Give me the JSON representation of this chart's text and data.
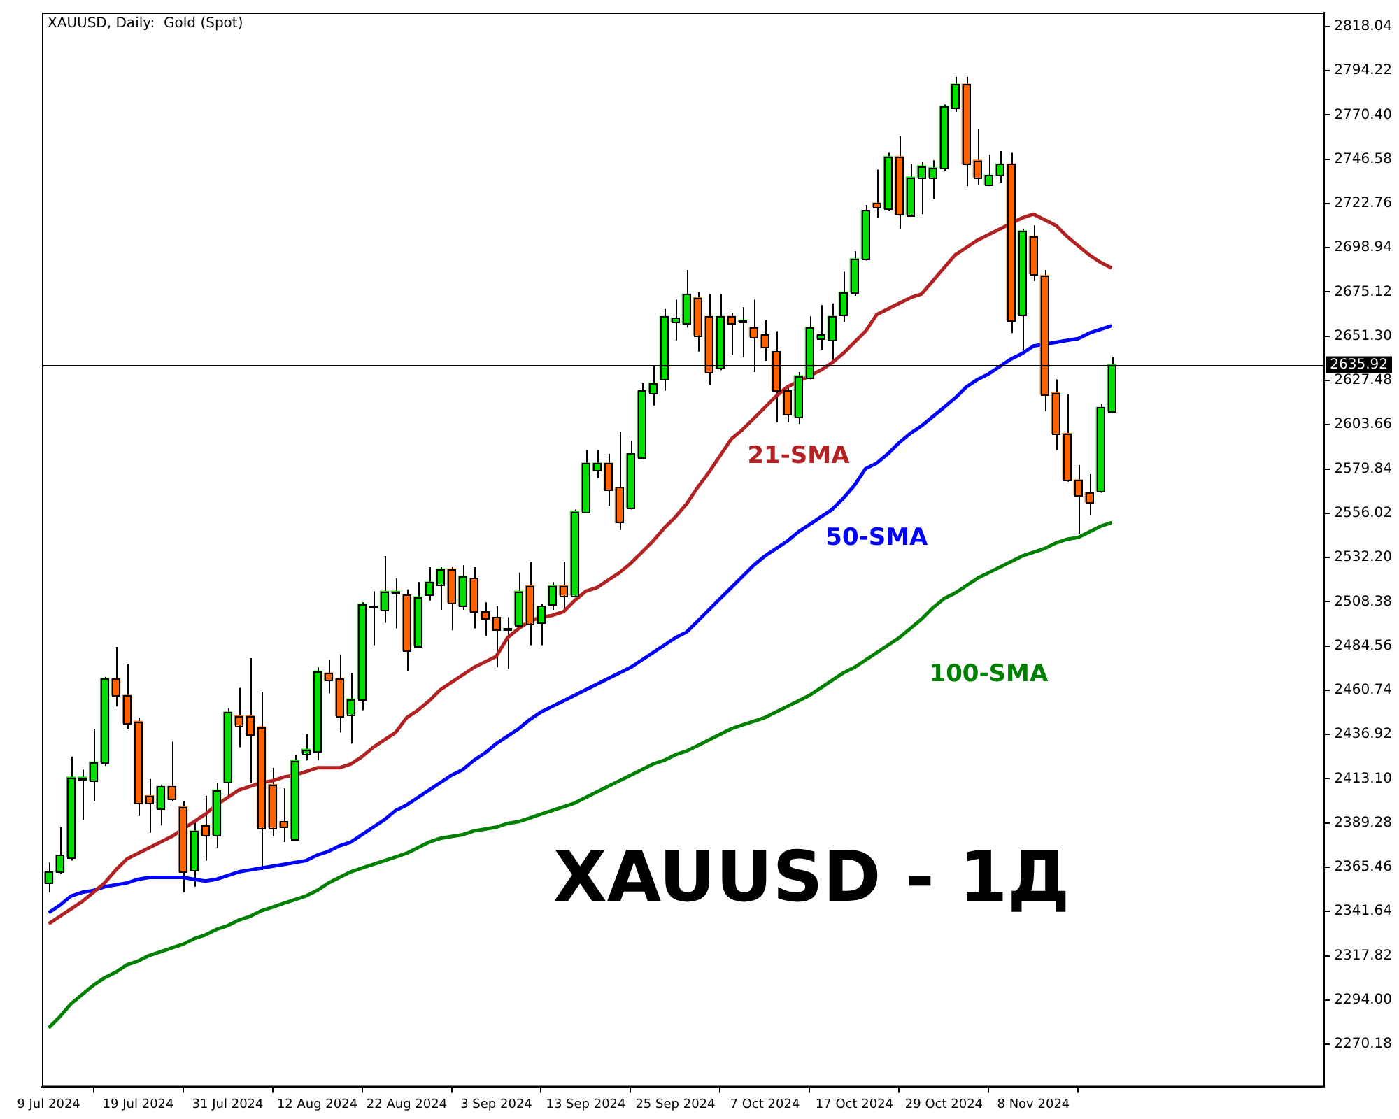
{
  "chart_data": {
    "type": "candlestick",
    "title": "XAUUSD, Daily:  Gold (Spot)",
    "categories": [
      "9 Jul 2024",
      null,
      null,
      null,
      null,
      null,
      null,
      null,
      "19 Jul 2024",
      null,
      null,
      null,
      null,
      null,
      null,
      null,
      "31 Jul 2024",
      null,
      null,
      null,
      null,
      null,
      null,
      null,
      "12 Aug 2024",
      null,
      null,
      null,
      null,
      null,
      null,
      null,
      "22 Aug 2024",
      null,
      null,
      null,
      null,
      null,
      null,
      null,
      "3 Sep 2024",
      null,
      null,
      null,
      null,
      null,
      null,
      null,
      "13 Sep 2024",
      null,
      null,
      null,
      null,
      null,
      null,
      null,
      "25 Sep 2024",
      null,
      null,
      null,
      null,
      null,
      null,
      null,
      "7 Oct 2024",
      null,
      null,
      null,
      null,
      null,
      null,
      null,
      "17 Oct 2024",
      null,
      null,
      null,
      null,
      null,
      null,
      null,
      "29 Oct 2024",
      null,
      null,
      null,
      null,
      null,
      null,
      null,
      "8 Nov 2024",
      null,
      null,
      null,
      null,
      null,
      null,
      null
    ],
    "ohlc": [
      [
        2357,
        2368,
        2352,
        2363
      ],
      [
        2363,
        2387,
        2362,
        2372
      ],
      [
        2371,
        2425,
        2369,
        2414
      ],
      [
        2413,
        2418,
        2391,
        2414
      ],
      [
        2412,
        2440,
        2401,
        2422
      ],
      [
        2422,
        2468,
        2420,
        2467
      ],
      [
        2467,
        2484,
        2452,
        2458
      ],
      [
        2458,
        2475,
        2440,
        2443
      ],
      [
        2444,
        2446,
        2393,
        2400
      ],
      [
        2404,
        2413,
        2384,
        2400
      ],
      [
        2397,
        2410,
        2388,
        2409
      ],
      [
        2409,
        2433,
        2401,
        2402
      ],
      [
        2398,
        2401,
        2352,
        2363
      ],
      [
        2364,
        2391,
        2355,
        2385
      ],
      [
        2388,
        2404,
        2369,
        2383
      ],
      [
        2383,
        2411,
        2376,
        2407
      ],
      [
        2411,
        2451,
        2404,
        2449
      ],
      [
        2447,
        2462,
        2430,
        2442
      ],
      [
        2447,
        2478,
        2411,
        2437
      ],
      [
        2441,
        2460,
        2364,
        2387
      ],
      [
        2410,
        2419,
        2382,
        2387
      ],
      [
        2390,
        2408,
        2379,
        2387
      ],
      [
        2381,
        2426,
        2380,
        2423
      ],
      [
        2427,
        2437,
        2423,
        2429
      ],
      [
        2428,
        2473,
        2423,
        2471
      ],
      [
        2470,
        2477,
        2459,
        2466
      ],
      [
        2467,
        2480,
        2438,
        2447
      ],
      [
        2448,
        2470,
        2432,
        2456
      ],
      [
        2456,
        2508,
        2450,
        2507
      ],
      [
        2505,
        2514,
        2485,
        2506
      ],
      [
        2504,
        2533,
        2497,
        2514
      ],
      [
        2513,
        2521,
        2494,
        2514
      ],
      [
        2512,
        2515,
        2471,
        2482
      ],
      [
        2485,
        2519,
        2484,
        2511
      ],
      [
        2512,
        2527,
        2509,
        2519
      ],
      [
        2518,
        2527,
        2504,
        2526
      ],
      [
        2526,
        2527,
        2493,
        2508
      ],
      [
        2506,
        2528,
        2504,
        2522
      ],
      [
        2521,
        2527,
        2494,
        2503
      ],
      [
        2503,
        2508,
        2490,
        2499
      ],
      [
        2500,
        2506,
        2473,
        2493
      ],
      [
        2493,
        2500,
        2472,
        2494
      ],
      [
        2496,
        2524,
        2495,
        2514
      ],
      [
        2517,
        2530,
        2485,
        2497
      ],
      [
        2497,
        2507,
        2485,
        2506
      ],
      [
        2507,
        2519,
        2504,
        2517
      ],
      [
        2517,
        2530,
        2504,
        2512
      ],
      [
        2512,
        2558,
        2511,
        2557
      ],
      [
        2557,
        2590,
        2556,
        2583
      ],
      [
        2579,
        2590,
        2575,
        2583
      ],
      [
        2583,
        2588,
        2560,
        2569
      ],
      [
        2570,
        2600,
        2547,
        2551
      ],
      [
        2559,
        2595,
        2558,
        2588
      ],
      [
        2586,
        2626,
        2585,
        2622
      ],
      [
        2621,
        2635,
        2614,
        2626
      ],
      [
        2628,
        2666,
        2622,
        2662
      ],
      [
        2659,
        2671,
        2649,
        2661
      ],
      [
        2658,
        2687,
        2656,
        2674
      ],
      [
        2672,
        2675,
        2643,
        2652
      ],
      [
        2662,
        2674,
        2625,
        2632
      ],
      [
        2634,
        2674,
        2633,
        2662
      ],
      [
        2662,
        2664,
        2641,
        2658
      ],
      [
        2659,
        2667,
        2640,
        2660
      ],
      [
        2656,
        2671,
        2632,
        2651
      ],
      [
        2652,
        2660,
        2638,
        2645
      ],
      [
        2643,
        2654,
        2605,
        2622
      ],
      [
        2622,
        2625,
        2605,
        2609
      ],
      [
        2608,
        2632,
        2604,
        2630
      ],
      [
        2629,
        2662,
        2628,
        2656
      ],
      [
        2650,
        2668,
        2644,
        2652
      ],
      [
        2649,
        2669,
        2638,
        2662
      ],
      [
        2663,
        2686,
        2659,
        2675
      ],
      [
        2675,
        2697,
        2673,
        2693
      ],
      [
        2693,
        2722,
        2692,
        2719
      ],
      [
        2723,
        2741,
        2715,
        2721
      ],
      [
        2720,
        2750,
        2719,
        2748
      ],
      [
        2748,
        2759,
        2709,
        2717
      ],
      [
        2717,
        2744,
        2716,
        2737
      ],
      [
        2737,
        2745,
        2717,
        2743
      ],
      [
        2737,
        2746,
        2725,
        2742
      ],
      [
        2742,
        2776,
        2740,
        2775
      ],
      [
        2774,
        2791,
        2772,
        2787
      ],
      [
        2787,
        2791,
        2732,
        2744
      ],
      [
        2746,
        2763,
        2733,
        2737
      ],
      [
        2733,
        2749,
        2732,
        2738
      ],
      [
        2738,
        2751,
        2734,
        2744
      ],
      [
        2744,
        2750,
        2653,
        2660
      ],
      [
        2663,
        2709,
        2644,
        2708
      ],
      [
        2705,
        2711,
        2681,
        2685
      ],
      [
        2684,
        2687,
        2611,
        2620
      ],
      [
        2621,
        2628,
        2590,
        2599
      ],
      [
        2599,
        2620,
        2573,
        2574
      ],
      [
        2574,
        2582,
        2545,
        2566
      ],
      [
        2567,
        2577,
        2555,
        2562
      ],
      [
        2568,
        2615,
        2567,
        2613
      ],
      [
        2611,
        2640,
        2610,
        2636
      ]
    ],
    "colors": [
      "#00e000",
      "#00e000",
      "#00e000",
      "#00e000",
      "#00e000",
      "#00e000",
      "#ff6000",
      "#ff6000",
      "#ff6000",
      "#ff6000",
      "#00e000",
      "#ff6000",
      "#ff6000",
      "#00e000",
      "#ff6000",
      "#00e000",
      "#00e000",
      "#ff6000",
      "#ff6000",
      "#ff6000",
      "#ff6000",
      "#ff6000",
      "#00e000",
      "#00e000",
      "#00e000",
      "#ff6000",
      "#ff6000",
      "#00e000",
      "#00e000",
      "#00e000",
      "#00e000",
      "#00e000",
      "#ff6000",
      "#00e000",
      "#00e000",
      "#00e000",
      "#ff6000",
      "#00e000",
      "#ff6000",
      "#ff6000",
      "#ff6000",
      "#00e000",
      "#00e000",
      "#ff6000",
      "#00e000",
      "#00e000",
      "#ff6000",
      "#00e000",
      "#00e000",
      "#00e000",
      "#ff6000",
      "#ff6000",
      "#00e000",
      "#00e000",
      "#00e000",
      "#00e000",
      "#00e000",
      "#00e000",
      "#ff6000",
      "#ff6000",
      "#00e000",
      "#ff6000",
      "#00e000",
      "#ff6000",
      "#ff6000",
      "#ff6000",
      "#ff6000",
      "#00e000",
      "#00e000",
      "#00e000",
      "#00e000",
      "#00e000",
      "#00e000",
      "#00e000",
      "#ff6000",
      "#00e000",
      "#ff6000",
      "#00e000",
      "#00e000",
      "#00e000",
      "#00e000",
      "#00e000",
      "#ff6000",
      "#ff6000",
      "#00e000",
      "#00e000",
      "#ff6000",
      "#00e000",
      "#ff6000",
      "#ff6000",
      "#ff6000",
      "#ff6000",
      "#ff6000",
      "#ff6000",
      "#00e000",
      "#00e000"
    ],
    "series": [
      {
        "type": "line",
        "name": "21-SMA",
        "color": "#b22222",
        "values": [
          2335,
          2339,
          2343,
          2347,
          2352,
          2357,
          2364,
          2370,
          2373,
          2376,
          2379,
          2382,
          2386,
          2390,
          2394,
          2399,
          2403,
          2407,
          2409,
          2411,
          2412,
          2414,
          2415,
          2417,
          2419,
          2419,
          2419,
          2421,
          2425,
          2430,
          2434,
          2438,
          2446,
          2450,
          2455,
          2461,
          2465,
          2469,
          2473,
          2476,
          2479,
          2489,
          2494,
          2498,
          2500,
          2501,
          2503,
          2509,
          2514,
          2516,
          2520,
          2524,
          2529,
          2535,
          2541,
          2548,
          2554,
          2561,
          2570,
          2578,
          2587,
          2596,
          2601,
          2607,
          2613,
          2619,
          2624,
          2627,
          2630,
          2633,
          2637,
          2642,
          2648,
          2654,
          2663,
          2666,
          2669,
          2672,
          2674,
          2681,
          2688,
          2695,
          2699,
          2703,
          2706,
          2709,
          2712,
          2715,
          2717,
          2714,
          2711,
          2705,
          2700,
          2695,
          2691,
          2688
        ]
      },
      {
        "type": "line",
        "name": "50-SMA",
        "color": "#0000ff",
        "values": [
          2341,
          2345,
          2350,
          2352,
          2353,
          2355,
          2356,
          2357,
          2359,
          2360,
          2360,
          2360,
          2360,
          2359,
          2358,
          2359,
          2361,
          2363,
          2364,
          2365,
          2366,
          2367,
          2368,
          2369,
          2372,
          2374,
          2377,
          2379,
          2383,
          2387,
          2391,
          2396,
          2399,
          2403,
          2407,
          2411,
          2415,
          2418,
          2423,
          2427,
          2432,
          2436,
          2440,
          2445,
          2449,
          2452,
          2455,
          2458,
          2461,
          2464,
          2467,
          2470,
          2473,
          2477,
          2481,
          2485,
          2489,
          2492,
          2498,
          2504,
          2510,
          2516,
          2522,
          2528,
          2533,
          2537,
          2541,
          2546,
          2550,
          2554,
          2558,
          2564,
          2571,
          2580,
          2583,
          2588,
          2594,
          2599,
          2603,
          2608,
          2613,
          2618,
          2624,
          2628,
          2631,
          2635,
          2639,
          2642,
          2646,
          2647,
          2648,
          2649,
          2650,
          2653,
          2655,
          2657
        ]
      },
      {
        "type": "line",
        "name": "100-SMA",
        "color": "#008000",
        "values": [
          2279,
          2285,
          2292,
          2297,
          2302,
          2306,
          2309,
          2313,
          2315,
          2318,
          2320,
          2322,
          2324,
          2327,
          2329,
          2332,
          2334,
          2337,
          2339,
          2342,
          2344,
          2346,
          2348,
          2350,
          2353,
          2357,
          2360,
          2363,
          2365,
          2367,
          2369,
          2371,
          2373,
          2376,
          2379,
          2381,
          2382,
          2383,
          2385,
          2386,
          2387,
          2389,
          2390,
          2392,
          2394,
          2396,
          2398,
          2400,
          2403,
          2406,
          2409,
          2412,
          2415,
          2418,
          2421,
          2423,
          2426,
          2428,
          2431,
          2434,
          2437,
          2440,
          2442,
          2444,
          2446,
          2449,
          2452,
          2455,
          2458,
          2462,
          2466,
          2470,
          2473,
          2477,
          2481,
          2485,
          2489,
          2494,
          2499,
          2505,
          2510,
          2513,
          2517,
          2521,
          2524,
          2527,
          2530,
          2533,
          2535,
          2537,
          2540,
          2542,
          2543,
          2546,
          2549,
          2551
        ]
      }
    ],
    "ylim": [
      2247.1,
      2825.5
    ],
    "yticks": [
      2270.18,
      {
        "value": 2294,
        "label": "2294.00"
      },
      2317.82,
      2341.64,
      2365.46,
      2389.28,
      {
        "value": 2413.1,
        "label": "2413.10"
      },
      2436.92,
      2460.74,
      2484.56,
      2508.38,
      {
        "value": 2532.2,
        "label": "2532.20"
      },
      2556.02,
      2579.84,
      2603.66,
      2627.48,
      {
        "value": 2651.3,
        "label": "2651.30"
      },
      2675.12,
      2698.94,
      2722.76,
      2746.58,
      {
        "value": 2770.4,
        "label": "2770.40"
      },
      2794.22,
      2818.04
    ],
    "ref_lines": [
      {
        "axis": "y",
        "value": 2635.92,
        "label": "2635.92",
        "color": "#000000"
      }
    ],
    "annotations": [
      "XAUUSD - 1Д"
    ],
    "grid": false,
    "legend": false
  }
}
